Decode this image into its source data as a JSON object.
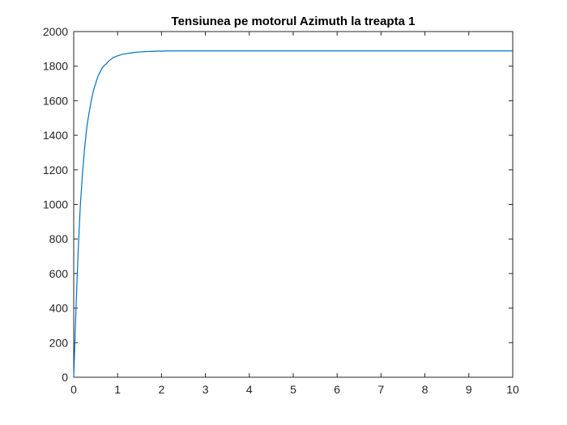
{
  "chart_data": {
    "type": "line",
    "title": "Tensiunea pe motorul Azimuth la treapta 1",
    "xlabel": "",
    "ylabel": "",
    "xlim": [
      0,
      10
    ],
    "ylim": [
      0,
      2000
    ],
    "x_ticks": [
      0,
      1,
      2,
      3,
      4,
      5,
      6,
      7,
      8,
      9,
      10
    ],
    "y_ticks": [
      0,
      200,
      400,
      600,
      800,
      1000,
      1200,
      1400,
      1600,
      1800,
      2000
    ],
    "grid": false,
    "line_color": "#0072BD",
    "series": [
      {
        "x": [
          0,
          0.05,
          0.1,
          0.15,
          0.2,
          0.25,
          0.3,
          0.35,
          0.4,
          0.45,
          0.5,
          0.55,
          0.6,
          0.65,
          0.7,
          0.75,
          0.8,
          0.85,
          0.9,
          0.95,
          1.0,
          1.1,
          1.2,
          1.3,
          1.4,
          1.5,
          1.6,
          1.7,
          1.8,
          1.9,
          2.0,
          2.1,
          2.2,
          2.3,
          2.4,
          2.5,
          2.6,
          2.7,
          2.8,
          2.9,
          3.0,
          3.1,
          3.2,
          3.3,
          3.4,
          3.5,
          3.6,
          3.7,
          3.8,
          3.9,
          4.0,
          4.1,
          4.2,
          4.3,
          4.4,
          4.5,
          4.6,
          4.7,
          4.8,
          4.9,
          5.0,
          5.1,
          5.2,
          5.3,
          5.4,
          5.5,
          5.6,
          5.7,
          5.8,
          5.9,
          6.0,
          6.1,
          6.2,
          6.3,
          6.4,
          6.5,
          6.6,
          6.7,
          6.8,
          6.9,
          7.0,
          7.1,
          7.2,
          7.3,
          7.4,
          7.5,
          7.6,
          7.7,
          7.8,
          7.9,
          8.0,
          8.1,
          8.2,
          8.3,
          8.4,
          8.5,
          8.6,
          8.7,
          8.8,
          8.9,
          9.0,
          9.1,
          9.2,
          9.3,
          9.4,
          9.5,
          9.6,
          9.7,
          9.8,
          9.9,
          10.0
        ],
        "y": [
          0,
          380,
          720,
          990,
          1180,
          1330,
          1450,
          1530,
          1600,
          1660,
          1700,
          1740,
          1765,
          1790,
          1805,
          1815,
          1830,
          1840,
          1850,
          1855,
          1860,
          1868,
          1872,
          1876,
          1880,
          1882,
          1884,
          1885,
          1886,
          1887,
          1887,
          1888,
          1888,
          1888,
          1888,
          1888,
          1888,
          1888,
          1888,
          1888,
          1888,
          1888,
          1888,
          1888,
          1888,
          1888,
          1888,
          1888,
          1888,
          1888,
          1888,
          1888,
          1888,
          1888,
          1888,
          1888,
          1888,
          1888,
          1888,
          1888,
          1888,
          1888,
          1888,
          1888,
          1888,
          1888,
          1888,
          1888,
          1888,
          1888,
          1888,
          1888,
          1888,
          1888,
          1888,
          1888,
          1888,
          1888,
          1888,
          1888,
          1888,
          1888,
          1888,
          1888,
          1888,
          1888,
          1888,
          1888,
          1888,
          1888,
          1888,
          1888,
          1888,
          1888,
          1888,
          1888,
          1888,
          1888,
          1888,
          1888,
          1888,
          1888,
          1888,
          1888,
          1888,
          1888,
          1888,
          1888,
          1888,
          1888,
          1888
        ]
      }
    ]
  }
}
